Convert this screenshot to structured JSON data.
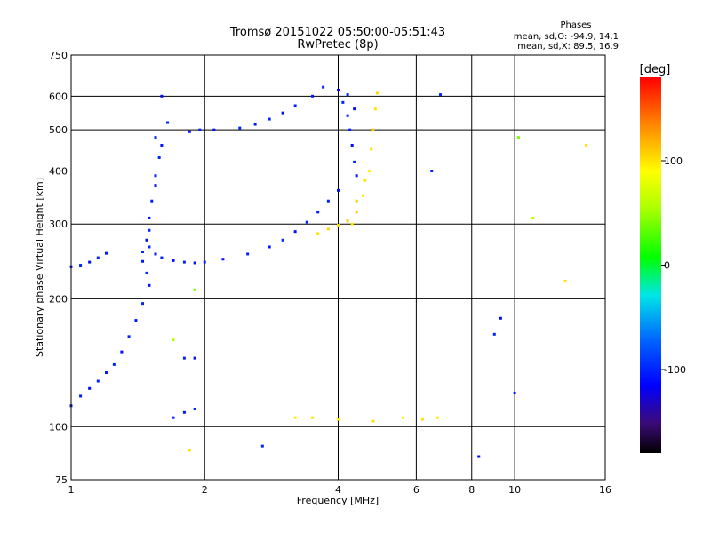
{
  "chart_data": {
    "type": "scatter",
    "title": "Tromsø 20151022 05:50:00-05:51:43",
    "subtitle": "RwPretec (8p)",
    "xlabel": "Frequency [MHz]",
    "ylabel": "Stationary phase Virtual Height [km]",
    "x_scale": "log",
    "y_scale": "log",
    "xlim": [
      1,
      16
    ],
    "ylim": [
      75,
      750
    ],
    "x_ticks": [
      1,
      2,
      4,
      6,
      8,
      10,
      16
    ],
    "x_tick_labels": [
      "1",
      "2",
      "4",
      "6",
      "8",
      "10",
      "16"
    ],
    "y_ticks": [
      75,
      100,
      200,
      300,
      400,
      500,
      600,
      750
    ],
    "y_tick_labels": [
      "75",
      "100",
      "200",
      "300",
      "400",
      "500",
      "600",
      "750"
    ],
    "grid": true,
    "stats": {
      "title": "Phases",
      "line_o": "mean, sd,O: -94.9, 14.1",
      "line_x": "mean, sd,X: 89.5, 16.9"
    },
    "colorbar": {
      "label": "[deg]",
      "min": -180,
      "max": 180,
      "ticks": [
        -100,
        0,
        100
      ],
      "tick_labels": [
        "-100",
        "0",
        "100"
      ]
    },
    "series": [
      {
        "points": [
          [
            1.0,
            238,
            -105
          ],
          [
            1.05,
            240,
            -100
          ],
          [
            1.1,
            244,
            -110
          ],
          [
            1.15,
            250,
            -100
          ],
          [
            1.2,
            256,
            -105
          ],
          [
            1.0,
            112,
            -100
          ],
          [
            1.05,
            118,
            -105
          ],
          [
            1.1,
            123,
            -110
          ],
          [
            1.15,
            128,
            -100
          ],
          [
            1.2,
            134,
            -105
          ],
          [
            1.25,
            140,
            -100
          ],
          [
            1.3,
            150,
            -110
          ],
          [
            1.35,
            163,
            -100
          ],
          [
            1.4,
            178,
            -105
          ],
          [
            1.45,
            195,
            -100
          ],
          [
            1.5,
            215,
            -110
          ],
          [
            1.48,
            230,
            -100
          ],
          [
            1.45,
            245,
            -105
          ],
          [
            1.45,
            258,
            -100
          ],
          [
            1.48,
            275,
            -110
          ],
          [
            1.5,
            290,
            -100
          ],
          [
            1.5,
            310,
            -105
          ],
          [
            1.52,
            340,
            -100
          ],
          [
            1.55,
            370,
            -110
          ],
          [
            1.55,
            390,
            -100
          ],
          [
            1.5,
            265,
            -100
          ],
          [
            1.55,
            255,
            -105
          ],
          [
            1.6,
            250,
            -100
          ],
          [
            1.7,
            246,
            -110
          ],
          [
            1.8,
            244,
            -100
          ],
          [
            1.9,
            243,
            -105
          ],
          [
            2.0,
            244,
            -100
          ],
          [
            2.2,
            248,
            -110
          ],
          [
            2.5,
            255,
            -100
          ],
          [
            2.8,
            265,
            -105
          ],
          [
            3.0,
            275,
            -100
          ],
          [
            3.2,
            288,
            -110
          ],
          [
            3.4,
            303,
            -100
          ],
          [
            3.6,
            320,
            -105
          ],
          [
            3.8,
            340,
            -100
          ],
          [
            4.0,
            360,
            -110
          ],
          [
            1.55,
            480,
            -100
          ],
          [
            1.6,
            460,
            -105
          ],
          [
            1.58,
            430,
            -100
          ],
          [
            1.6,
            600,
            -110
          ],
          [
            1.65,
            520,
            -100
          ],
          [
            1.85,
            495,
            -105
          ],
          [
            1.95,
            500,
            -100
          ],
          [
            2.1,
            500,
            -110
          ],
          [
            2.4,
            505,
            -100
          ],
          [
            2.6,
            515,
            -105
          ],
          [
            2.8,
            530,
            -100
          ],
          [
            3.0,
            548,
            -110
          ],
          [
            3.2,
            570,
            -100
          ],
          [
            3.5,
            600,
            -105
          ],
          [
            3.7,
            630,
            -100
          ],
          [
            4.0,
            620,
            -110
          ],
          [
            4.1,
            580,
            -100
          ],
          [
            4.2,
            540,
            -105
          ],
          [
            4.25,
            500,
            -100
          ],
          [
            4.3,
            460,
            -110
          ],
          [
            4.35,
            420,
            -100
          ],
          [
            4.4,
            390,
            -105
          ],
          [
            4.2,
            605,
            -100
          ],
          [
            4.35,
            560,
            -110
          ],
          [
            4.3,
            300,
            100
          ],
          [
            4.4,
            320,
            110
          ],
          [
            4.55,
            350,
            100
          ],
          [
            4.7,
            400,
            95
          ],
          [
            4.75,
            450,
            100
          ],
          [
            4.8,
            500,
            110
          ],
          [
            4.85,
            560,
            100
          ],
          [
            4.9,
            610,
            105
          ],
          [
            4.6,
            380,
            100
          ],
          [
            4.4,
            340,
            110
          ],
          [
            3.6,
            285,
            100
          ],
          [
            3.8,
            292,
            105
          ],
          [
            4.0,
            298,
            100
          ],
          [
            4.2,
            305,
            110
          ],
          [
            1.8,
            145,
            -100
          ],
          [
            1.9,
            145,
            -110
          ],
          [
            1.7,
            105,
            -100
          ],
          [
            1.8,
            108,
            -105
          ],
          [
            1.9,
            110,
            -100
          ],
          [
            3.2,
            105,
            95
          ],
          [
            3.5,
            105,
            100
          ],
          [
            4.0,
            104,
            95
          ],
          [
            4.8,
            103,
            100
          ],
          [
            5.6,
            105,
            95
          ],
          [
            6.2,
            104,
            100
          ],
          [
            6.7,
            105,
            95
          ],
          [
            9.3,
            180,
            -110
          ],
          [
            9.0,
            165,
            -100
          ],
          [
            6.5,
            400,
            -100
          ],
          [
            8.3,
            85,
            -110
          ],
          [
            6.8,
            605,
            -100
          ],
          [
            10.0,
            120,
            -100
          ],
          [
            13.0,
            220,
            100
          ],
          [
            14.5,
            460,
            100
          ],
          [
            11.0,
            310,
            60
          ],
          [
            10.2,
            480,
            40
          ],
          [
            1.9,
            210,
            40
          ],
          [
            1.7,
            160,
            60
          ],
          [
            1.85,
            88,
            100
          ],
          [
            2.7,
            90,
            -100
          ]
        ]
      }
    ]
  }
}
